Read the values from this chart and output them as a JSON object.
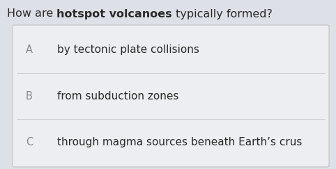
{
  "question_normal1": "How are ",
  "question_bold": "hotspot volcanoes",
  "question_end": " typically formed?",
  "options": [
    {
      "label": "A",
      "text": "by tectonic plate collisions"
    },
    {
      "label": "B",
      "text": "from subduction zones"
    },
    {
      "label": "C",
      "text": "through magma sources beneath Earth’s crus"
    }
  ],
  "bg_color": "#dde1e7",
  "card_color": "#eceef1",
  "divider_color": "#c8cace",
  "question_text_color": "#2a2a2a",
  "label_color": "#888888",
  "option_text_color": "#2a2a2a",
  "question_fontsize": 11.5,
  "option_fontsize": 11.0,
  "label_fontsize": 10.5,
  "card_edge_color": "#c0c2c5"
}
